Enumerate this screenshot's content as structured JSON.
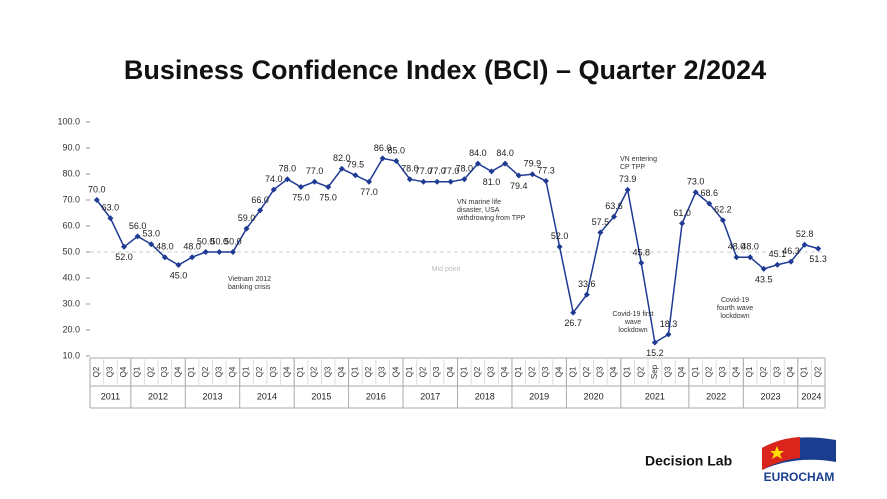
{
  "chart_data": {
    "type": "line",
    "title": "Business Confidence Index (BCI) – Quarter 2/2024",
    "categories": [
      "Q2",
      "Q3",
      "Q4",
      "Q1",
      "Q2",
      "Q3",
      "Q4",
      "Q1",
      "Q2",
      "Q3",
      "Q4",
      "Q1",
      "Q2",
      "Q3",
      "Q4",
      "Q1",
      "Q2",
      "Q3",
      "Q4",
      "Q1",
      "Q2",
      "Q3",
      "Q4",
      "Q1",
      "Q2",
      "Q3",
      "Q4",
      "Q1",
      "Q2",
      "Q3",
      "Q4",
      "Q1",
      "Q2",
      "Q3",
      "Q4",
      "Q1",
      "Q2",
      "Q3",
      "Q4",
      "Q1",
      "Q2",
      "Sep",
      "Q3",
      "Q4",
      "Q1",
      "Q2",
      "Q3",
      "Q4",
      "Q1",
      "Q2",
      "Q3",
      "Q4",
      "Q1",
      "Q2"
    ],
    "years": [
      "2011",
      "2012",
      "2013",
      "2014",
      "2015",
      "2016",
      "2017",
      "2018",
      "2019",
      "2020",
      "2021",
      "2022",
      "2023",
      "2024"
    ],
    "series": [
      {
        "name": "BCI",
        "color": "#1f3a93",
        "values": [
          70,
          63,
          52,
          56,
          53,
          48,
          45,
          48,
          50,
          50,
          50,
          59,
          66,
          74,
          78,
          75,
          77,
          75,
          82,
          79.5,
          77,
          86,
          85,
          78,
          77,
          77,
          77,
          78,
          84,
          81,
          84,
          79.4,
          79.9,
          77.3,
          52,
          26.7,
          33.6,
          57.5,
          63.6,
          73.9,
          45.8,
          15.2,
          18.3,
          61,
          73,
          68.6,
          62.2,
          48,
          48,
          43.5,
          45.1,
          46.3,
          52.8,
          51.3
        ],
        "value_labels": [
          "70.0",
          "63.0",
          "52.0",
          "56.0",
          "53.0",
          "48.0",
          "45.0",
          "48.0",
          "50.0",
          "50.0",
          "50.0",
          "59.0",
          "66.0",
          "74.0",
          "78.0",
          "75.0",
          "77.0",
          "75.0",
          "82.0",
          "79.5",
          "77.0",
          "86.0",
          "85.0",
          "78.0",
          "77.0",
          "77.0",
          "77.0",
          "78.0",
          "84.0",
          "81.0",
          "84.0",
          "79.4",
          "79.9",
          "77.3",
          "52.0",
          "26.7",
          "33.6",
          "57.5",
          "63.6",
          "73.9",
          "45.8",
          "15.2",
          "18.3",
          "61.0",
          "73.0",
          "68.6",
          "62.2",
          "48.0",
          "48.0",
          "43.5",
          "45.1",
          "46.3",
          "52.8",
          "51.3"
        ]
      }
    ],
    "ylim": [
      10,
      100
    ],
    "yticks": [
      {
        "value": 10,
        "label": "10.0"
      },
      {
        "value": 20,
        "label": "20.0"
      },
      {
        "value": 30,
        "label": "30.0"
      },
      {
        "value": 40,
        "label": "40.0"
      },
      {
        "value": 50,
        "label": "50.0"
      },
      {
        "value": 60,
        "label": "60.0"
      },
      {
        "value": 70,
        "label": "70.0"
      },
      {
        "value": 80,
        "label": "80.0"
      },
      {
        "value": 90,
        "label": "90.0"
      },
      {
        "value": 100,
        "label": "100.0"
      }
    ],
    "midpoint": {
      "value": 50,
      "label": "Mid point"
    },
    "annotations": [
      "Vietnam 2012 banking crisis",
      "VN marine life disaster, USA withdrowing from TPP",
      "VN entering CP TPP",
      "Covid-19 first wave lockdown",
      "Covid-19 fourth wave lockdown"
    ]
  },
  "logos": {
    "decision_lab": "Decision Lab",
    "eurocham": "EUROCHAM"
  }
}
